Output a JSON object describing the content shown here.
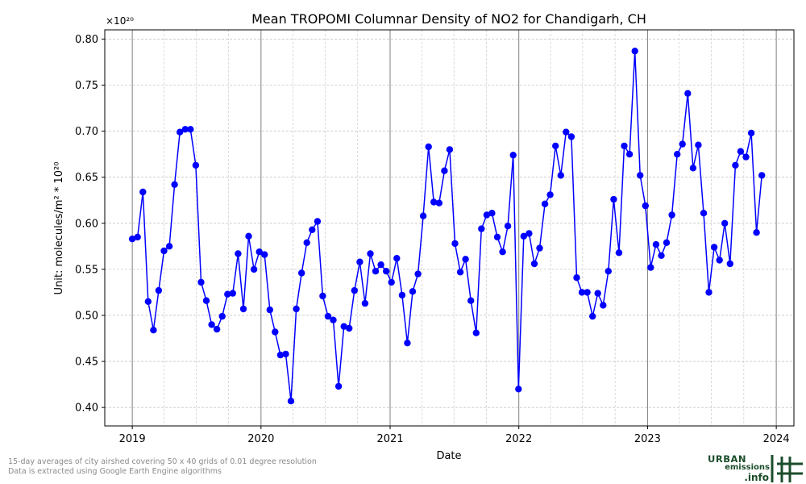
{
  "chart_data": {
    "type": "line",
    "title": "Mean TROPOMI Columnar Density of NO2 for Chandigarh, CH",
    "xlabel": "Date",
    "ylabel": "Unit: molecules/m² * 10²⁰",
    "offset_label": "×10²⁰",
    "x_ticks": [
      "2019",
      "2020",
      "2021",
      "2022",
      "2023",
      "2024"
    ],
    "y_ticks": [
      "0.40",
      "0.45",
      "0.50",
      "0.55",
      "0.60",
      "0.65",
      "0.70",
      "0.75",
      "0.80"
    ],
    "ylim": [
      0.38,
      0.81
    ],
    "xlim": [
      "2018-10-15",
      "2024-02-20"
    ],
    "grid": true,
    "series_color": "#0000ff",
    "series": [
      {
        "values": [
          [
            "2019-01-01",
            0.583
          ],
          [
            "2019-01-16",
            0.585
          ],
          [
            "2019-01-31",
            0.634
          ],
          [
            "2019-02-15",
            0.515
          ],
          [
            "2019-03-02",
            0.484
          ],
          [
            "2019-03-17",
            0.527
          ],
          [
            "2019-04-01",
            0.57
          ],
          [
            "2019-04-16",
            0.575
          ],
          [
            "2019-05-01",
            0.642
          ],
          [
            "2019-05-16",
            0.699
          ],
          [
            "2019-05-31",
            0.702
          ],
          [
            "2019-06-15",
            0.702
          ],
          [
            "2019-06-30",
            0.663
          ],
          [
            "2019-07-15",
            0.536
          ],
          [
            "2019-07-30",
            0.516
          ],
          [
            "2019-08-14",
            0.49
          ],
          [
            "2019-08-29",
            0.485
          ],
          [
            "2019-09-13",
            0.499
          ],
          [
            "2019-09-28",
            0.523
          ],
          [
            "2019-10-13",
            0.524
          ],
          [
            "2019-10-28",
            0.567
          ],
          [
            "2019-11-12",
            0.507
          ],
          [
            "2019-11-27",
            0.586
          ],
          [
            "2019-12-12",
            0.55
          ],
          [
            "2019-12-27",
            0.569
          ],
          [
            "2020-01-11",
            0.566
          ],
          [
            "2020-01-26",
            0.506
          ],
          [
            "2020-02-10",
            0.482
          ],
          [
            "2020-02-25",
            0.457
          ],
          [
            "2020-03-11",
            0.458
          ],
          [
            "2020-03-26",
            0.407
          ],
          [
            "2020-04-10",
            0.507
          ],
          [
            "2020-04-25",
            0.546
          ],
          [
            "2020-05-10",
            0.579
          ],
          [
            "2020-05-25",
            0.593
          ],
          [
            "2020-06-09",
            0.602
          ],
          [
            "2020-06-24",
            0.521
          ],
          [
            "2020-07-09",
            0.499
          ],
          [
            "2020-07-24",
            0.495
          ],
          [
            "2020-08-08",
            0.423
          ],
          [
            "2020-08-23",
            0.488
          ],
          [
            "2020-09-07",
            0.486
          ],
          [
            "2020-09-22",
            0.527
          ],
          [
            "2020-10-07",
            0.558
          ],
          [
            "2020-10-22",
            0.513
          ],
          [
            "2020-11-06",
            0.567
          ],
          [
            "2020-11-21",
            0.548
          ],
          [
            "2020-12-06",
            0.555
          ],
          [
            "2020-12-21",
            0.548
          ],
          [
            "2021-01-05",
            0.536
          ],
          [
            "2021-01-20",
            0.562
          ],
          [
            "2021-02-04",
            0.522
          ],
          [
            "2021-02-19",
            0.47
          ],
          [
            "2021-03-06",
            0.526
          ],
          [
            "2021-03-21",
            0.545
          ],
          [
            "2021-04-05",
            0.608
          ],
          [
            "2021-04-20",
            0.683
          ],
          [
            "2021-05-05",
            0.623
          ],
          [
            "2021-05-20",
            0.622
          ],
          [
            "2021-06-04",
            0.657
          ],
          [
            "2021-06-19",
            0.68
          ],
          [
            "2021-07-04",
            0.578
          ],
          [
            "2021-07-19",
            0.547
          ],
          [
            "2021-08-03",
            0.561
          ],
          [
            "2021-08-18",
            0.516
          ],
          [
            "2021-09-02",
            0.481
          ],
          [
            "2021-09-17",
            0.594
          ],
          [
            "2021-10-02",
            0.609
          ],
          [
            "2021-10-17",
            0.611
          ],
          [
            "2021-11-01",
            0.585
          ],
          [
            "2021-11-16",
            0.569
          ],
          [
            "2021-12-01",
            0.597
          ],
          [
            "2021-12-16",
            0.674
          ],
          [
            "2021-12-31",
            0.42
          ],
          [
            "2022-01-15",
            0.586
          ],
          [
            "2022-01-30",
            0.589
          ],
          [
            "2022-02-14",
            0.556
          ],
          [
            "2022-03-01",
            0.573
          ],
          [
            "2022-03-16",
            0.621
          ],
          [
            "2022-03-31",
            0.631
          ],
          [
            "2022-04-15",
            0.684
          ],
          [
            "2022-04-30",
            0.652
          ],
          [
            "2022-05-15",
            0.699
          ],
          [
            "2022-05-30",
            0.694
          ],
          [
            "2022-06-14",
            0.541
          ],
          [
            "2022-06-29",
            0.525
          ],
          [
            "2022-07-14",
            0.525
          ],
          [
            "2022-07-29",
            0.499
          ],
          [
            "2022-08-13",
            0.524
          ],
          [
            "2022-08-28",
            0.511
          ],
          [
            "2022-09-12",
            0.548
          ],
          [
            "2022-09-27",
            0.626
          ],
          [
            "2022-10-12",
            0.568
          ],
          [
            "2022-10-27",
            0.684
          ],
          [
            "2022-11-11",
            0.675
          ],
          [
            "2022-11-26",
            0.787
          ],
          [
            "2022-12-11",
            0.652
          ],
          [
            "2022-12-26",
            0.619
          ],
          [
            "2023-01-10",
            0.552
          ],
          [
            "2023-01-25",
            0.577
          ],
          [
            "2023-02-09",
            0.565
          ],
          [
            "2023-02-24",
            0.579
          ],
          [
            "2023-03-11",
            0.609
          ],
          [
            "2023-03-26",
            0.675
          ],
          [
            "2023-04-10",
            0.686
          ],
          [
            "2023-04-25",
            0.741
          ],
          [
            "2023-05-10",
            0.66
          ],
          [
            "2023-05-25",
            0.685
          ],
          [
            "2023-06-09",
            0.611
          ],
          [
            "2023-06-24",
            0.525
          ],
          [
            "2023-07-09",
            0.574
          ],
          [
            "2023-07-24",
            0.56
          ],
          [
            "2023-08-08",
            0.6
          ],
          [
            "2023-08-23",
            0.556
          ],
          [
            "2023-09-07",
            0.663
          ],
          [
            "2023-09-22",
            0.678
          ],
          [
            "2023-10-07",
            0.672
          ],
          [
            "2023-10-22",
            0.698
          ],
          [
            "2023-11-06",
            0.59
          ],
          [
            "2023-11-21",
            0.652
          ]
        ]
      }
    ]
  },
  "footnote": {
    "line1": "15-day averages of city airshed covering 50 x 40 grids of 0.01 degree resolution",
    "line2": "Data is extracted using Google Earth Engine algorithms"
  },
  "logo": {
    "line1": "URBAN",
    "line2": "emissions",
    "line3": ".info",
    "color": "#1b4d2b"
  }
}
